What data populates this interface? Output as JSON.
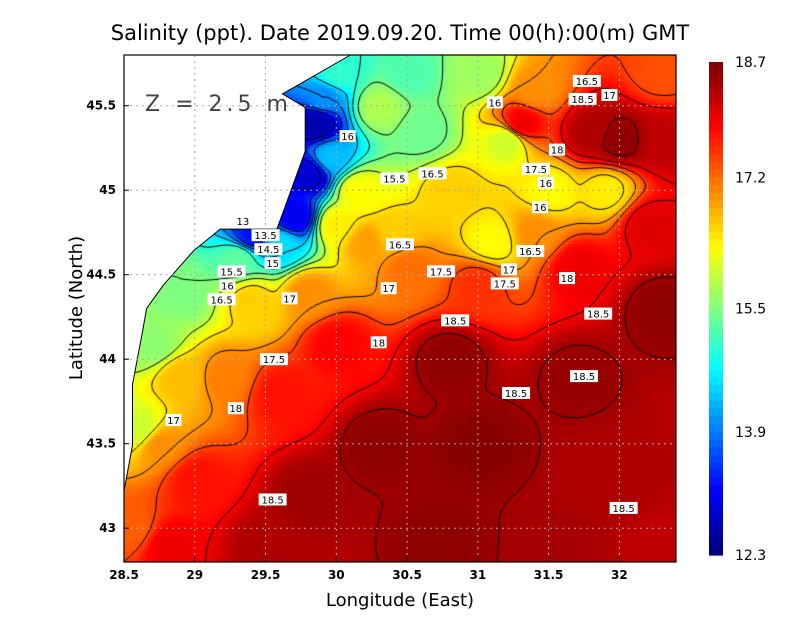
{
  "chart_data": {
    "type": "heatmap",
    "title": "Salinity (ppt). Date 2019.09.20. Time 00(h):00(m) GMT",
    "xlabel": "Longitude (East)",
    "ylabel": "Latitude (North)",
    "depth_label": "Z = 2.5 m",
    "xlim": [
      28.5,
      32.4
    ],
    "ylim": [
      42.8,
      45.8
    ],
    "x_ticks": [
      "28.5",
      "29",
      "29.5",
      "30",
      "30.5",
      "31",
      "31.5",
      "32"
    ],
    "x_tick_values": [
      28.5,
      29,
      29.5,
      30,
      30.5,
      31,
      31.5,
      32
    ],
    "y_ticks": [
      "43",
      "43.5",
      "44",
      "44.5",
      "45",
      "45.5"
    ],
    "y_tick_values": [
      43,
      43.5,
      44,
      44.5,
      45,
      45.5
    ],
    "grid": true,
    "colorbar": {
      "min": 12.3,
      "max": 18.7,
      "ticks": [
        "12.3",
        "13.9",
        "15.5",
        "17.2",
        "18.7"
      ],
      "tick_values": [
        12.3,
        13.9,
        15.5,
        17.2,
        18.7
      ],
      "colormap": "jet",
      "placement": "right"
    },
    "contour_levels": [
      13,
      13.5,
      14,
      14.5,
      15,
      15.5,
      16,
      16.5,
      17,
      17.5,
      18,
      18.5
    ],
    "samples": [
      [
        29.85,
        45.4,
        12.6
      ],
      [
        29.8,
        45.1,
        12.8
      ],
      [
        29.7,
        44.85,
        13.0
      ],
      [
        29.4,
        44.74,
        13.2
      ],
      [
        29.9,
        45.55,
        14.0
      ],
      [
        29.6,
        44.68,
        14.5
      ],
      [
        29.95,
        45.2,
        14.3
      ],
      [
        30.0,
        45.7,
        15.0
      ],
      [
        29.3,
        44.6,
        15.3
      ],
      [
        28.9,
        44.4,
        15.5
      ],
      [
        28.7,
        44.1,
        15.6
      ],
      [
        28.6,
        43.6,
        16.0
      ],
      [
        30.5,
        45.7,
        15.2
      ],
      [
        30.6,
        45.35,
        15.4
      ],
      [
        31.0,
        45.7,
        15.7
      ],
      [
        31.2,
        45.3,
        16.0
      ],
      [
        30.3,
        45.5,
        15.8
      ],
      [
        30.15,
        45.0,
        16.3
      ],
      [
        30.0,
        44.8,
        16.4
      ],
      [
        29.4,
        44.35,
        16.6
      ],
      [
        28.9,
        43.9,
        16.7
      ],
      [
        30.8,
        45.0,
        16.6
      ],
      [
        31.5,
        45.0,
        16.3
      ],
      [
        31.9,
        45.0,
        16.4
      ],
      [
        31.1,
        44.7,
        16.3
      ],
      [
        30.4,
        44.75,
        16.6
      ],
      [
        29.8,
        44.4,
        17.0
      ],
      [
        29.2,
        43.9,
        17.1
      ],
      [
        28.75,
        43.5,
        17.0
      ],
      [
        30.5,
        44.55,
        17.2
      ],
      [
        31.4,
        44.75,
        17.0
      ],
      [
        31.4,
        45.6,
        17.0
      ],
      [
        32.3,
        45.7,
        17.4
      ],
      [
        30.2,
        44.7,
        16.9
      ],
      [
        28.55,
        43.0,
        17.3
      ],
      [
        30.0,
        44.1,
        17.9
      ],
      [
        29.6,
        43.8,
        17.8
      ],
      [
        29.0,
        43.3,
        17.8
      ],
      [
        31.0,
        44.45,
        17.6
      ],
      [
        31.7,
        44.55,
        18.0
      ],
      [
        32.2,
        44.8,
        18.1
      ],
      [
        31.8,
        45.35,
        18.4
      ],
      [
        31.3,
        45.4,
        18.0
      ],
      [
        32.3,
        45.3,
        18.3
      ],
      [
        28.8,
        42.9,
        18.0
      ],
      [
        30.8,
        44.0,
        18.6
      ],
      [
        31.0,
        43.5,
        18.65
      ],
      [
        30.3,
        43.5,
        18.6
      ],
      [
        29.8,
        43.2,
        18.5
      ],
      [
        31.7,
        43.9,
        18.55
      ],
      [
        32.3,
        44.3,
        18.6
      ],
      [
        32.0,
        43.3,
        18.4
      ],
      [
        30.7,
        42.95,
        18.6
      ],
      [
        29.5,
        42.9,
        18.4
      ],
      [
        31.6,
        42.95,
        18.45
      ],
      [
        32.3,
        42.9,
        18.3
      ],
      [
        32.0,
        45.3,
        18.6
      ]
    ],
    "coastline": [
      [
        28.5,
        45.8
      ],
      [
        30.1,
        45.8
      ],
      [
        29.62,
        45.57
      ],
      [
        29.78,
        45.49
      ],
      [
        29.78,
        45.23
      ],
      [
        29.65,
        44.93
      ],
      [
        29.58,
        44.77
      ],
      [
        29.18,
        44.77
      ],
      [
        28.99,
        44.64
      ],
      [
        28.78,
        44.44
      ],
      [
        28.66,
        44.3
      ],
      [
        28.63,
        44.16
      ],
      [
        28.56,
        43.85
      ],
      [
        28.56,
        43.49
      ],
      [
        28.5,
        43.22
      ]
    ],
    "contour_labels": [
      {
        "text": "13",
        "lon": 29.34,
        "lat": 44.75
      },
      {
        "text": "13.5",
        "lon": 29.5,
        "lat": 44.72
      },
      {
        "text": "14.5",
        "lon": 29.52,
        "lat": 44.68
      },
      {
        "text": "15",
        "lon": 29.55,
        "lat": 44.62
      },
      {
        "text": "15.5",
        "lon": 29.26,
        "lat": 44.5
      },
      {
        "text": "16",
        "lon": 29.23,
        "lat": 44.43
      },
      {
        "text": "16.5",
        "lon": 29.19,
        "lat": 44.38
      },
      {
        "text": "17",
        "lon": 29.67,
        "lat": 44.36
      },
      {
        "text": "17.5",
        "lon": 29.56,
        "lat": 44.0
      },
      {
        "text": "18",
        "lon": 29.29,
        "lat": 43.71
      },
      {
        "text": "17",
        "lon": 28.85,
        "lat": 43.64
      },
      {
        "text": "16",
        "lon": 30.08,
        "lat": 45.32
      },
      {
        "text": "15.5",
        "lon": 30.41,
        "lat": 45.07
      },
      {
        "text": "16.5",
        "lon": 30.68,
        "lat": 45.1
      },
      {
        "text": "16",
        "lon": 31.12,
        "lat": 45.52
      },
      {
        "text": "16.5",
        "lon": 31.77,
        "lat": 45.62
      },
      {
        "text": "17",
        "lon": 31.93,
        "lat": 45.59
      },
      {
        "text": "18.5",
        "lon": 31.74,
        "lat": 45.54
      },
      {
        "text": "18",
        "lon": 31.56,
        "lat": 45.24
      },
      {
        "text": "17.5",
        "lon": 31.41,
        "lat": 45.12
      },
      {
        "text": "16",
        "lon": 31.48,
        "lat": 45.05
      },
      {
        "text": "16",
        "lon": 31.44,
        "lat": 44.9
      },
      {
        "text": "16.5",
        "lon": 30.45,
        "lat": 44.68
      },
      {
        "text": "16.5",
        "lon": 31.37,
        "lat": 44.64
      },
      {
        "text": "17.5",
        "lon": 30.74,
        "lat": 44.52
      },
      {
        "text": "17",
        "lon": 31.22,
        "lat": 44.52
      },
      {
        "text": "17.5",
        "lon": 31.19,
        "lat": 44.46
      },
      {
        "text": "18",
        "lon": 31.63,
        "lat": 44.48
      },
      {
        "text": "17",
        "lon": 30.37,
        "lat": 44.42
      },
      {
        "text": "18.5",
        "lon": 30.84,
        "lat": 44.23
      },
      {
        "text": "18.5",
        "lon": 31.85,
        "lat": 44.27
      },
      {
        "text": "18",
        "lon": 30.3,
        "lat": 44.1
      },
      {
        "text": "18.5",
        "lon": 31.75,
        "lat": 43.9
      },
      {
        "text": "18.5",
        "lon": 31.27,
        "lat": 43.8
      },
      {
        "text": "18.5",
        "lon": 29.55,
        "lat": 43.17
      },
      {
        "text": "18.5",
        "lon": 32.03,
        "lat": 43.12
      }
    ]
  }
}
